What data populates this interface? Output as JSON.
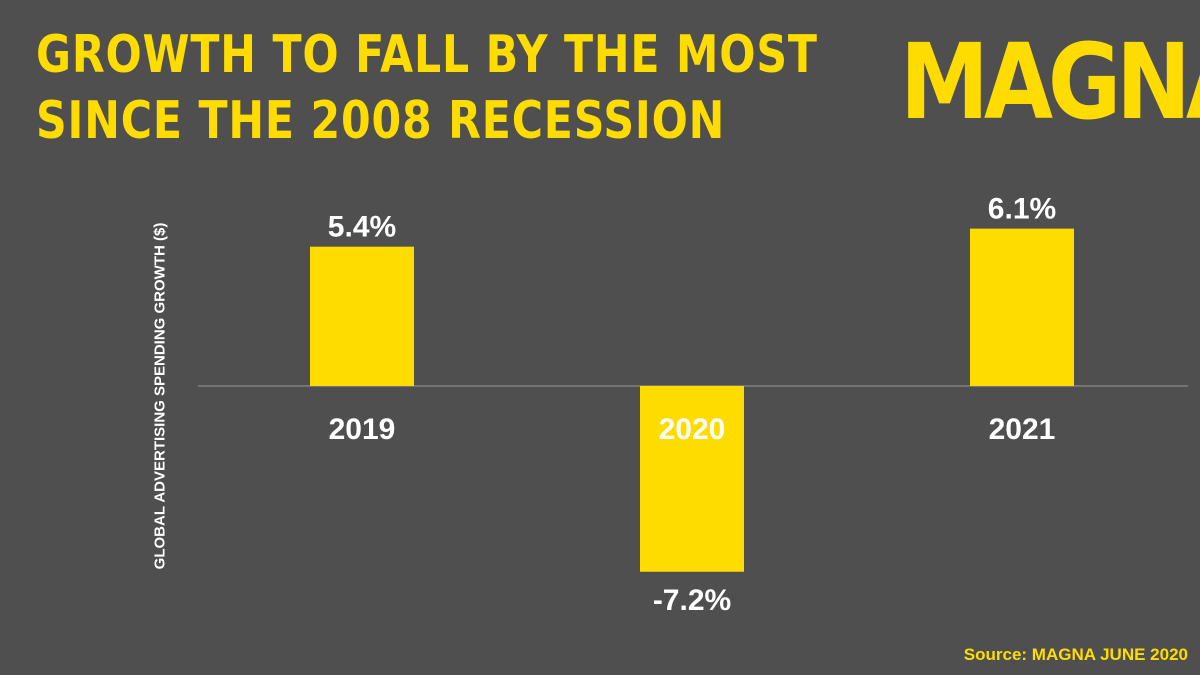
{
  "title_lines": [
    "GROWTH TO FALL BY THE MOST",
    "SINCE THE 2008 RECESSION"
  ],
  "logo": "MAGNA",
  "source": "Source: MAGNA JUNE 2020",
  "colors": {
    "background": "#4f4f4f",
    "accent": "#ffdc00",
    "text": "#ffffff",
    "axis": "#9a9a9a"
  },
  "chart_data": {
    "type": "bar",
    "categories": [
      "2019",
      "2020",
      "2021"
    ],
    "values": [
      5.4,
      -7.2,
      6.1
    ],
    "value_labels": [
      "5.4%",
      "-7.2%",
      "6.1%"
    ],
    "xlabel": "",
    "ylabel": "GLOBAL ADVERTISING SPENDING GROWTH ($)",
    "ylim": [
      -7.2,
      6.1
    ],
    "grid": false,
    "legend": "none"
  }
}
